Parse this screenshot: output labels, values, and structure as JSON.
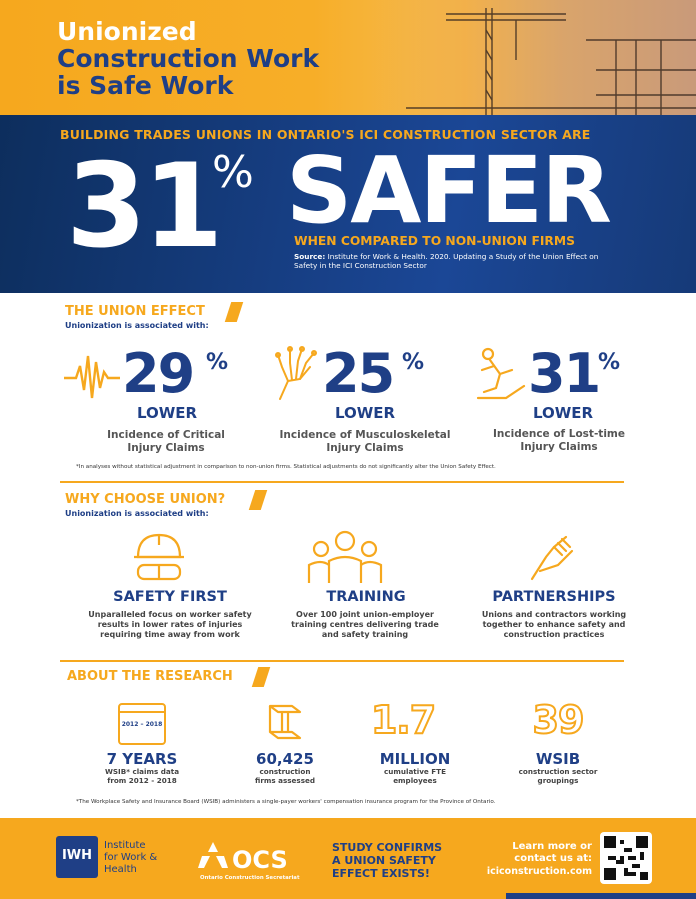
{
  "hero": {
    "title_line1": "Unionized",
    "title_line2": "Construction Work",
    "title_line3": "is Safe Work"
  },
  "band": {
    "heading": "BUILDING TRADES UNIONS IN ONTARIO'S ICI CONSTRUCTION SECTOR ARE",
    "big_number": "31",
    "big_percent": "%",
    "big_word": "SAFER",
    "compared": "WHEN COMPARED TO NON-UNION FIRMS",
    "source_label": "Source:",
    "source_text": "Institute for Work & Health. 2020. Updating a Study of the Union Effect on Safety in the ICI Construction Sector"
  },
  "union_effect": {
    "title": "THE UNION EFFECT",
    "subtitle": "Unionization is associated with:",
    "stats": [
      {
        "number": "29",
        "percent": "%",
        "lower": "LOWER",
        "desc_line1": "Incidence of Critical",
        "desc_line2": "Injury Claims",
        "icon": "heartbeat-icon"
      },
      {
        "number": "25",
        "percent": "%",
        "lower": "LOWER",
        "desc_line1": "Incidence of Musculoskeletal",
        "desc_line2": "Injury Claims",
        "icon": "hand-bones-icon"
      },
      {
        "number": "31",
        "percent": "%",
        "lower": "LOWER",
        "desc_line1": "Incidence of Lost-time",
        "desc_line2": "Injury Claims",
        "icon": "slip-fall-icon"
      }
    ],
    "footnote": "*In analyses without statistical adjustment in comparison to non-union firms. Statistical adjustments do not significantly alter the Union Safety Effect."
  },
  "why_union": {
    "title": "WHY CHOOSE UNION?",
    "subtitle": "Unionization is associated with:",
    "items": [
      {
        "title": "SAFETY FIRST",
        "line1": "Unparalleled focus on worker safety",
        "line2": "results in lower rates of injuries",
        "line3": "requiring time away from work",
        "icon": "hardhat-goggles-icon"
      },
      {
        "title": "TRAINING",
        "line1": "Over 100 joint union-employer",
        "line2": "training centres delivering trade",
        "line3": "and safety training",
        "icon": "workers-group-icon"
      },
      {
        "title": "PARTNERSHIPS",
        "line1": "Unions and contractors working",
        "line2": "together to enhance safety and",
        "line3": "construction practices",
        "icon": "handshake-icon"
      }
    ]
  },
  "research": {
    "title": "ABOUT THE RESEARCH",
    "items": [
      {
        "number": "7 YEARS",
        "line1": "WSIB* claims data",
        "line2": "from 2012 - 2018",
        "icon": "calendar-icon",
        "icon_text": "2012 – 2018"
      },
      {
        "number": "60,425",
        "line1": "construction",
        "line2": "firms assessed",
        "icon": "steel-beam-icon"
      },
      {
        "number": "MILLION",
        "line1": "cumulative FTE",
        "line2": "employees",
        "outline": "1.7"
      },
      {
        "number": "WSIB",
        "line1": "construction sector",
        "line2": "groupings",
        "outline": "39"
      }
    ],
    "footnote": "*The Workplace Safety and Insurance Board (WSIB) administers a single-payer workers' compensation insurance program for the Province of Ontario."
  },
  "footer": {
    "iwh_line1": "Institute",
    "iwh_line2": "for Work &",
    "iwh_line3": "Health",
    "iwh_logo": "IWH",
    "ocs_name": "OCS",
    "ocs_sub": "Ontario Construction Secretariat",
    "study_line1": "STUDY CONFIRMS",
    "study_line2": "A UNION SAFETY",
    "study_line3": "EFFECT EXISTS!",
    "learn_line1": "Learn more or",
    "learn_line2": "contact us at:",
    "website": "iciconstruction.com"
  },
  "colors": {
    "orange": "#f6a81e",
    "navy": "#1f3f86",
    "band_dark": "#0d2e5d"
  }
}
